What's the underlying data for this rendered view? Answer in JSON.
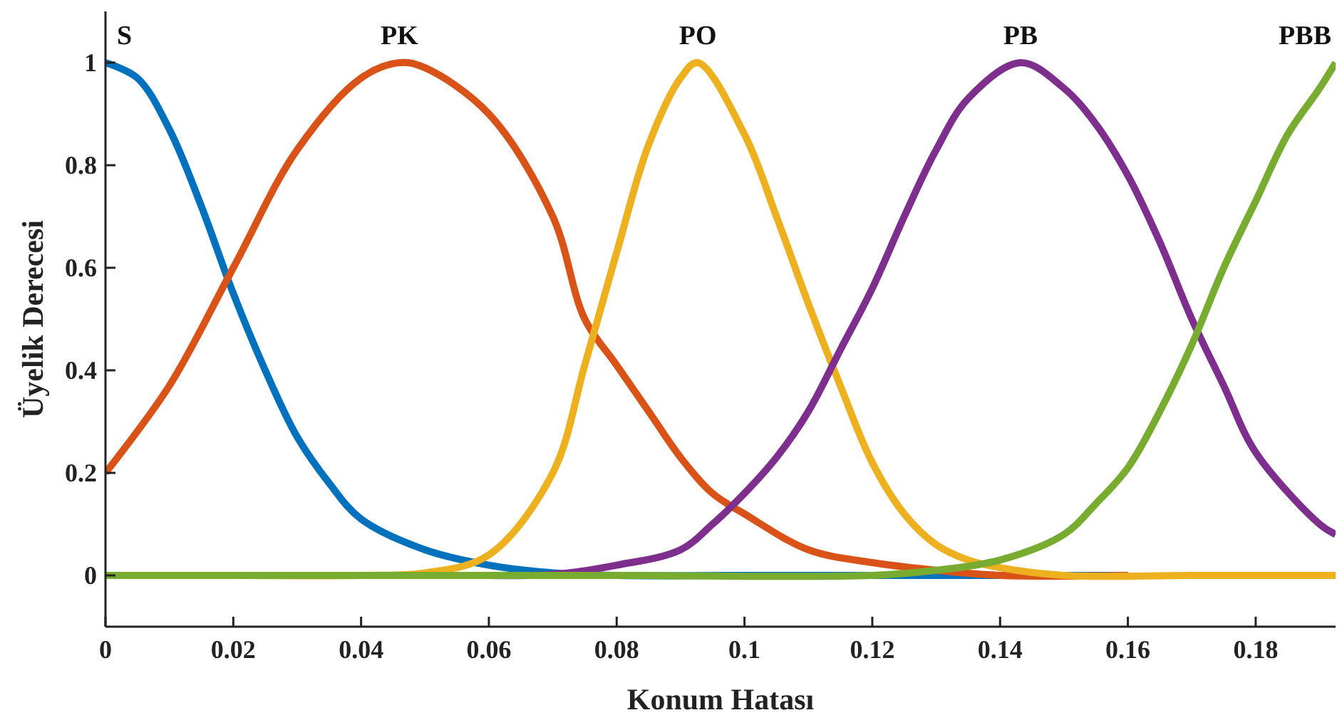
{
  "chart_data": {
    "type": "line",
    "xlabel": "Konum Hatası",
    "ylabel": "Üyelik Derecesi",
    "xlim": [
      0,
      0.1925
    ],
    "ylim": [
      -0.1,
      1.1
    ],
    "xticks": [
      0,
      0.02,
      0.04,
      0.06,
      0.08,
      0.1,
      0.12,
      0.14,
      0.16,
      0.18
    ],
    "yticks": [
      0,
      0.2,
      0.4,
      0.6,
      0.8,
      1
    ],
    "series": [
      {
        "name": "S",
        "color": "#0072bd",
        "x": [
          0,
          0.005,
          0.01,
          0.015,
          0.02,
          0.025,
          0.03,
          0.035,
          0.04,
          0.05,
          0.06,
          0.07,
          0.08,
          0.1,
          0.12,
          0.14,
          0.16
        ],
        "values": [
          1,
          0.97,
          0.87,
          0.72,
          0.55,
          0.4,
          0.27,
          0.18,
          0.11,
          0.05,
          0.02,
          0.005,
          0,
          0,
          0,
          0,
          0
        ]
      },
      {
        "name": "PK",
        "color": "#d95319",
        "x": [
          0,
          0.01,
          0.02,
          0.03,
          0.04,
          0.046,
          0.05,
          0.06,
          0.07,
          0.075,
          0.08,
          0.085,
          0.09,
          0.095,
          0.1,
          0.11,
          0.12,
          0.13,
          0.14,
          0.16
        ],
        "values": [
          0.2,
          0.37,
          0.6,
          0.83,
          0.97,
          1,
          0.99,
          0.9,
          0.7,
          0.5,
          0.41,
          0.32,
          0.23,
          0.16,
          0.12,
          0.05,
          0.025,
          0.01,
          0,
          0
        ]
      },
      {
        "name": "PO",
        "color": "#edb120",
        "x": [
          0,
          0.02,
          0.04,
          0.05,
          0.06,
          0.07,
          0.075,
          0.08,
          0.085,
          0.09,
          0.0927,
          0.1,
          0.105,
          0.11,
          0.115,
          0.12,
          0.125,
          0.13,
          0.135,
          0.14,
          0.15,
          0.17,
          0.1925
        ],
        "values": [
          0,
          0,
          0,
          0.005,
          0.04,
          0.2,
          0.41,
          0.63,
          0.84,
          0.97,
          1,
          0.86,
          0.7,
          0.53,
          0.37,
          0.22,
          0.12,
          0.06,
          0.03,
          0.015,
          0,
          0,
          0
        ]
      },
      {
        "name": "PB",
        "color": "#7e2f8e",
        "x": [
          0.06,
          0.07,
          0.08,
          0.09,
          0.095,
          0.1,
          0.105,
          0.11,
          0.115,
          0.12,
          0.125,
          0.13,
          0.135,
          0.1432,
          0.15,
          0.155,
          0.16,
          0.165,
          0.17,
          0.175,
          0.18,
          0.19,
          0.1925
        ],
        "values": [
          0,
          0.002,
          0.02,
          0.05,
          0.1,
          0.16,
          0.23,
          0.32,
          0.44,
          0.56,
          0.7,
          0.83,
          0.93,
          1,
          0.95,
          0.88,
          0.78,
          0.65,
          0.5,
          0.37,
          0.24,
          0.1,
          0.08
        ]
      },
      {
        "name": "PBB",
        "color": "#77ac30",
        "x": [
          0,
          0.04,
          0.08,
          0.12,
          0.13,
          0.14,
          0.15,
          0.155,
          0.16,
          0.165,
          0.17,
          0.175,
          0.18,
          0.185,
          0.19,
          0.1925
        ],
        "values": [
          0,
          0,
          0,
          0,
          0.01,
          0.03,
          0.08,
          0.14,
          0.21,
          0.32,
          0.45,
          0.6,
          0.73,
          0.86,
          0.95,
          1
        ]
      }
    ]
  }
}
